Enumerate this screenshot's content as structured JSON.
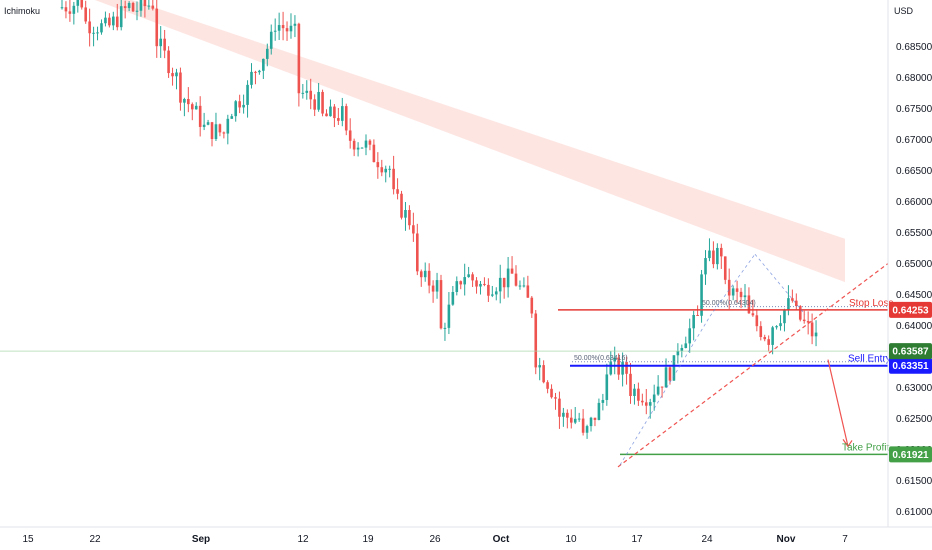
{
  "indicator_label": "Ichimoku",
  "currency_label": "USD",
  "colors": {
    "up": "#26a69a",
    "down": "#ef5350",
    "cloud_bear": "#fde0dd",
    "cloud_bull": "#dff0e4",
    "stop_loss": "#e53935",
    "sell_entry": "#1a1aff",
    "take_profit": "#43a047",
    "last_price": "#2e7d32",
    "trend": "#ef5350"
  },
  "chart_data": {
    "type": "candlestick",
    "instrument_note": "price chart with Ichimoku cloud",
    "y_axis": {
      "range": [
        0.6075,
        0.6925
      ],
      "ticks": [
        "0.68500",
        "0.68000",
        "0.67500",
        "0.67000",
        "0.66500",
        "0.66000",
        "0.65500",
        "0.65000",
        "0.64500",
        "0.64000",
        "0.63500",
        "0.63000",
        "0.62500",
        "0.62000",
        "0.61500",
        "0.61000"
      ]
    },
    "x_axis": {
      "ticks": [
        {
          "label": "15",
          "bold": false
        },
        {
          "label": "22",
          "bold": false
        },
        {
          "label": "Sep",
          "bold": true
        },
        {
          "label": "12",
          "bold": false
        },
        {
          "label": "19",
          "bold": false
        },
        {
          "label": "26",
          "bold": false
        },
        {
          "label": "Oct",
          "bold": true
        },
        {
          "label": "10",
          "bold": false
        },
        {
          "label": "17",
          "bold": false
        },
        {
          "label": "24",
          "bold": false
        },
        {
          "label": "Nov",
          "bold": true
        },
        {
          "label": "7",
          "bold": false
        }
      ]
    },
    "price_path": [
      [
        0.6952,
        0.6912
      ],
      [
        0.6922,
        0.689
      ],
      [
        0.688,
        0.6876
      ],
      [
        0.6915,
        0.6906
      ],
      [
        0.692,
        0.687
      ],
      [
        0.68,
        0.6785
      ],
      [
        0.6732,
        0.672
      ],
      [
        0.671,
        0.6735
      ],
      [
        0.678,
        0.679
      ],
      [
        0.686,
        0.6892
      ],
      [
        0.687,
        0.678
      ],
      [
        0.676,
        0.6735
      ],
      [
        0.674,
        0.6706
      ],
      [
        0.669,
        0.6683
      ],
      [
        0.6653,
        0.6616
      ],
      [
        0.656,
        0.648
      ],
      [
        0.6465,
        0.6375
      ],
      [
        0.6475,
        0.6488
      ],
      [
        0.646,
        0.6463
      ],
      [
        0.6475,
        0.6492
      ],
      [
        0.6428,
        0.636
      ],
      [
        0.6285,
        0.6255
      ],
      [
        0.625,
        0.6205
      ],
      [
        0.628,
        0.634
      ],
      [
        0.6325,
        0.63
      ],
      [
        0.6285,
        0.629
      ],
      [
        0.6335,
        0.636
      ],
      [
        0.641,
        0.649
      ],
      [
        0.652,
        0.6462
      ],
      [
        0.644,
        0.642
      ],
      [
        0.638,
        0.6395
      ],
      [
        0.644,
        0.6425
      ],
      [
        0.638,
        0.6335
      ]
    ],
    "ichimoku_cloud": {
      "bear_segments": [
        {
          "x": [
            1,
            20
          ],
          "upper": [
            0.6945,
            0.654
          ],
          "lower": [
            0.6925,
            0.647
          ]
        },
        {
          "x": [
            20,
            24
          ],
          "upper": [
            0.654,
            0.642
          ],
          "lower": [
            0.647,
            0.633
          ]
        }
      ],
      "bull_segments": [
        {
          "x": [
            12,
            16
          ],
          "upper": [
            0.6815,
            0.68
          ],
          "lower": [
            0.679,
            0.6785
          ]
        },
        {
          "x": [
            25,
            29
          ],
          "upper": [
            0.633,
            0.629
          ],
          "lower": [
            0.6295,
            0.626
          ]
        },
        {
          "x": [
            29,
            34
          ],
          "upper": [
            0.6418,
            0.641
          ],
          "lower": [
            0.635,
            0.636
          ]
        }
      ]
    },
    "levels": [
      {
        "name": "Stop Loss",
        "value": 0.64253,
        "label": "0.64253",
        "color": "#e53935"
      },
      {
        "name": "Sell Entry",
        "value": 0.63351,
        "label": "0.63351",
        "color": "#1a1aff"
      },
      {
        "name": "Take Profit",
        "value": 0.61921,
        "label": "0.61921",
        "color": "#43a047"
      }
    ],
    "last_price": {
      "value": 0.63587,
      "label": "0.63587"
    },
    "fib_labels": [
      {
        "text": "50.00%(0.64304)",
        "value": 0.64304
      },
      {
        "text": "50.00%(0.63416)",
        "value": 0.63416
      }
    ],
    "trendline": {
      "from": [
        0.6172
      ],
      "to": [
        0.65
      ]
    },
    "projection_arrow": {
      "from": 0.6345,
      "to": 0.6205
    }
  }
}
